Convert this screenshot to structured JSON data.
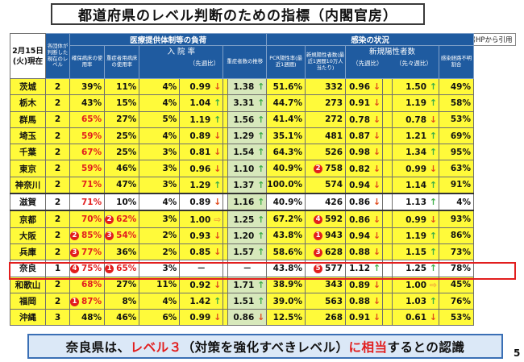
{
  "title": "都道府県のレベル判断のための指標（内閣官房）",
  "source_note": "内閣官房HPから引用",
  "header": {
    "date": "2月15日\n(火)現在",
    "level": "各団体が判断した現在のレベル",
    "medical_group": "医療提供体制等の負荷",
    "infection_group": "感染の状況",
    "bed_usage": "確保病床の使用率",
    "severe_bed_usage": "重症者用病床の使用率",
    "hospitalization_rate": "入 院 率",
    "vs_prev_week": "（先週比）",
    "severe_trend": "重症者数の推移",
    "pcr_positive": "PCR陽性率(最近1週間)",
    "new_positive": "新規陽性者数(最近1週間10万人当たり)",
    "new_positive_ratio": "新規陽性者数",
    "vs_prev_week2": "（先週比）",
    "vs_two_weeks": "（先々週比）",
    "unknown_route": "感染経路不明割合"
  },
  "rows": [
    {
      "pref": "茨城",
      "level": "2",
      "bed": {
        "v": "39%"
      },
      "severe": {
        "v": "11%"
      },
      "hosp": "4%",
      "hosp_cmp": {
        "v": "0.99",
        "a": "down"
      },
      "sev_trend": {
        "v": "1.38",
        "a": "up"
      },
      "pcr": "51.6%",
      "newpos": {
        "v": "332"
      },
      "np_week": {
        "v": "0.96",
        "a": "down"
      },
      "np_2week": {
        "v": "1.50",
        "a": "up"
      },
      "unknown": "49%"
    },
    {
      "pref": "栃木",
      "level": "2",
      "bed": {
        "v": "43%"
      },
      "severe": {
        "v": "15%"
      },
      "hosp": "4%",
      "hosp_cmp": {
        "v": "1.04",
        "a": "up"
      },
      "sev_trend": {
        "v": "3.31",
        "a": "up"
      },
      "pcr": "44.7%",
      "newpos": {
        "v": "273"
      },
      "np_week": {
        "v": "0.91",
        "a": "down"
      },
      "np_2week": {
        "v": "1.19",
        "a": "up"
      },
      "unknown": "58%"
    },
    {
      "pref": "群馬",
      "level": "2",
      "bed": {
        "v": "65%",
        "red": true
      },
      "severe": {
        "v": "27%"
      },
      "hosp": "5%",
      "hosp_cmp": {
        "v": "1.19",
        "a": "up"
      },
      "sev_trend": {
        "v": "1.56",
        "a": "up"
      },
      "pcr": "41.4%",
      "newpos": {
        "v": "272"
      },
      "np_week": {
        "v": "0.78",
        "a": "down"
      },
      "np_2week": {
        "v": "0.78",
        "a": "down"
      },
      "unknown": "53%"
    },
    {
      "pref": "埼玉",
      "level": "2",
      "bed": {
        "v": "59%",
        "red": true
      },
      "severe": {
        "v": "25%"
      },
      "hosp": "4%",
      "hosp_cmp": {
        "v": "0.89",
        "a": "down"
      },
      "sev_trend": {
        "v": "1.29",
        "a": "up"
      },
      "pcr": "35.1%",
      "newpos": {
        "v": "481"
      },
      "np_week": {
        "v": "0.87",
        "a": "down"
      },
      "np_2week": {
        "v": "1.21",
        "a": "up"
      },
      "unknown": "69%"
    },
    {
      "pref": "千葉",
      "level": "2",
      "bed": {
        "v": "67%",
        "red": true
      },
      "severe": {
        "v": "25%"
      },
      "hosp": "3%",
      "hosp_cmp": {
        "v": "0.81",
        "a": "down"
      },
      "sev_trend": {
        "v": "1.54",
        "a": "up"
      },
      "pcr": "64.3%",
      "newpos": {
        "v": "526"
      },
      "np_week": {
        "v": "0.98",
        "a": "down"
      },
      "np_2week": {
        "v": "1.34",
        "a": "up"
      },
      "unknown": "95%"
    },
    {
      "pref": "東京",
      "level": "2",
      "bed": {
        "v": "59%",
        "red": true
      },
      "severe": {
        "v": "46%"
      },
      "hosp": "3%",
      "hosp_cmp": {
        "v": "0.96",
        "a": "down"
      },
      "sev_trend": {
        "v": "1.10",
        "a": "up"
      },
      "pcr": "40.9%",
      "newpos": {
        "v": "758",
        "rank": "2"
      },
      "np_week": {
        "v": "0.82",
        "a": "down"
      },
      "np_2week": {
        "v": "0.99",
        "a": "down"
      },
      "unknown": "63%"
    },
    {
      "pref": "神奈川",
      "level": "2",
      "bed": {
        "v": "71%",
        "red": true
      },
      "severe": {
        "v": "47%"
      },
      "hosp": "3%",
      "hosp_cmp": {
        "v": "1.29",
        "a": "up"
      },
      "sev_trend": {
        "v": "1.37",
        "a": "up"
      },
      "pcr": "100.0%",
      "newpos": {
        "v": "574"
      },
      "np_week": {
        "v": "0.94",
        "a": "down"
      },
      "np_2week": {
        "v": "1.14",
        "a": "up"
      },
      "unknown": "91%"
    },
    {
      "pref": "滋賀",
      "level": "2",
      "bed": {
        "v": "71%",
        "red": true
      },
      "severe": {
        "v": "10%"
      },
      "hosp": "4%",
      "hosp_cmp": {
        "v": "0.89",
        "a": "down"
      },
      "sev_trend": {
        "v": "1.16",
        "a": "up"
      },
      "pcr": "40.9%",
      "newpos": {
        "v": "426"
      },
      "np_week": {
        "v": "0.86",
        "a": "down"
      },
      "np_2week": {
        "v": "1.13",
        "a": "up"
      },
      "unknown": "4%",
      "white": true
    },
    {
      "pref": "京都",
      "level": "2",
      "bed": {
        "v": "70%",
        "red": true
      },
      "severe": {
        "v": "62%",
        "red": true,
        "rank": "2"
      },
      "hosp": "3%",
      "hosp_cmp": {
        "v": "1.00",
        "a": "right"
      },
      "sev_trend": {
        "v": "1.25",
        "a": "up"
      },
      "pcr": "67.2%",
      "newpos": {
        "v": "592",
        "rank": "4"
      },
      "np_week": {
        "v": "0.86",
        "a": "down"
      },
      "np_2week": {
        "v": "0.99",
        "a": "down"
      },
      "unknown": "93%"
    },
    {
      "pref": "大阪",
      "level": "2",
      "bed": {
        "v": "85%",
        "red": true,
        "rank": "2"
      },
      "severe": {
        "v": "54%",
        "red": true,
        "rank": "3"
      },
      "hosp": "2%",
      "hosp_cmp": {
        "v": "0.93",
        "a": "down"
      },
      "sev_trend": {
        "v": "1.20",
        "a": "up"
      },
      "pcr": "43.8%",
      "newpos": {
        "v": "943",
        "rank": "1"
      },
      "np_week": {
        "v": "0.94",
        "a": "down"
      },
      "np_2week": {
        "v": "1.19",
        "a": "up"
      },
      "unknown": "86%"
    },
    {
      "pref": "兵庫",
      "level": "2",
      "bed": {
        "v": "77%",
        "red": true,
        "rank": "3"
      },
      "severe": {
        "v": "36%"
      },
      "hosp": "2%",
      "hosp_cmp": {
        "v": "0.85",
        "a": "down"
      },
      "sev_trend": {
        "v": "1.57",
        "a": "up"
      },
      "pcr": "58.6%",
      "newpos": {
        "v": "628",
        "rank": "3"
      },
      "np_week": {
        "v": "0.88",
        "a": "down"
      },
      "np_2week": {
        "v": "1.15",
        "a": "up"
      },
      "unknown": "73%"
    },
    {
      "pref": "奈良",
      "level": "1",
      "bed": {
        "v": "75%",
        "red": true,
        "rank": "4"
      },
      "severe": {
        "v": "65%",
        "red": true,
        "rank": "1"
      },
      "hosp": "3%",
      "hosp_cmp": {
        "v": "－",
        "a": ""
      },
      "sev_trend": {
        "v": "－",
        "a": ""
      },
      "pcr": "43.8%",
      "newpos": {
        "v": "577",
        "rank": "5"
      },
      "np_week": {
        "v": "1.12",
        "a": "up"
      },
      "np_2week": {
        "v": "1.25",
        "a": "up"
      },
      "unknown": "78%",
      "nara": true
    },
    {
      "pref": "和歌山",
      "level": "2",
      "bed": {
        "v": "68%",
        "red": true
      },
      "severe": {
        "v": "27%"
      },
      "hosp": "11%",
      "hosp_cmp": {
        "v": "0.92",
        "a": "down"
      },
      "sev_trend": {
        "v": "1.71",
        "a": "up"
      },
      "pcr": "38.9%",
      "newpos": {
        "v": "343"
      },
      "np_week": {
        "v": "0.89",
        "a": "down"
      },
      "np_2week": {
        "v": "1.00",
        "a": "right"
      },
      "unknown": "45%"
    },
    {
      "pref": "福岡",
      "level": "2",
      "bed": {
        "v": "87%",
        "red": true,
        "rank": "1"
      },
      "severe": {
        "v": "8%"
      },
      "hosp": "4%",
      "hosp_cmp": {
        "v": "1.42",
        "a": "up"
      },
      "sev_trend": {
        "v": "1.51",
        "a": "up"
      },
      "pcr": "39.0%",
      "newpos": {
        "v": "563"
      },
      "np_week": {
        "v": "0.88",
        "a": "down"
      },
      "np_2week": {
        "v": "1.03",
        "a": "up"
      },
      "unknown": "76%"
    },
    {
      "pref": "沖縄",
      "level": "3",
      "bed": {
        "v": "48%"
      },
      "severe": {
        "v": "46%"
      },
      "hosp": "6%",
      "hosp_cmp": {
        "v": "0.99",
        "a": "down"
      },
      "sev_trend": {
        "v": "0.86",
        "a": "down"
      },
      "pcr": "12.5%",
      "newpos": {
        "v": "268"
      },
      "np_week": {
        "v": "0.91",
        "a": "down"
      },
      "np_2week": {
        "v": "0.61",
        "a": "down"
      },
      "unknown": "53%"
    }
  ],
  "conclusion": {
    "part1": "奈良県は、",
    "part2": "レベル３",
    "part3": "（対策を強化すべきレベル）",
    "part4": "に相当",
    "part5": "するとの認識"
  },
  "page_number": "5",
  "colors": {
    "header_blue": "#1f5ba0",
    "row_yellow": "#fffa3a",
    "trend_green": "#d7e8bb",
    "accent_red": "#e21e1e"
  },
  "arrow_icons": {
    "up": "↑",
    "down": "↓",
    "right": "⇨"
  }
}
